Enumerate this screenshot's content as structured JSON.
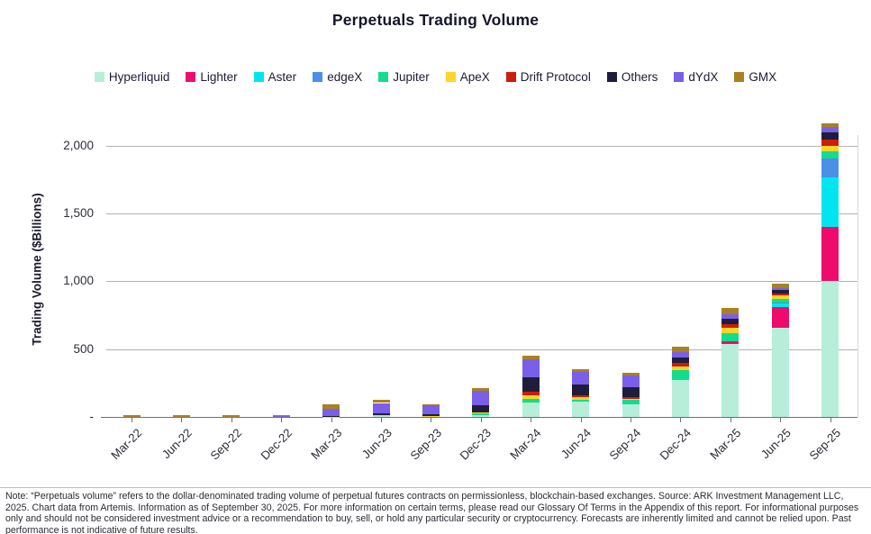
{
  "title": "Perpetuals Trading Volume",
  "chart_data": {
    "type": "bar",
    "stacked": true,
    "title": "Perpetuals Trading Volume",
    "xlabel": "",
    "ylabel": "Trading Volume ($Billions)",
    "legend_position": "top",
    "grid": "horizontal",
    "ylim": [
      0,
      2200
    ],
    "y_ticks": [
      {
        "value": 0,
        "label": "-"
      },
      {
        "value": 500,
        "label": "500"
      },
      {
        "value": 1000,
        "label": "1,000"
      },
      {
        "value": 1500,
        "label": "1,500"
      },
      {
        "value": 2000,
        "label": "2,000"
      }
    ],
    "categories": [
      "Mar-22",
      "Jun-22",
      "Sep-22",
      "Dec-22",
      "Mar-23",
      "Jun-23",
      "Sep-23",
      "Dec-23",
      "Mar-24",
      "Jun-24",
      "Sep-24",
      "Dec-24",
      "Mar-25",
      "Jun-25",
      "Sep-25"
    ],
    "series": [
      {
        "name": "Hyperliquid",
        "color": "#b7eeda",
        "values": [
          0,
          0,
          0,
          0,
          0,
          5,
          0,
          15,
          105,
          110,
          95,
          270,
          535,
          655,
          1000
        ]
      },
      {
        "name": "Lighter",
        "color": "#ee0b6c",
        "values": [
          0,
          0,
          0,
          0,
          0,
          0,
          0,
          0,
          0,
          0,
          0,
          0,
          20,
          155,
          400
        ]
      },
      {
        "name": "Aster",
        "color": "#00e5f0",
        "values": [
          0,
          0,
          0,
          0,
          0,
          0,
          0,
          0,
          0,
          0,
          0,
          0,
          0,
          30,
          365
        ]
      },
      {
        "name": "edgeX",
        "color": "#4a90e8",
        "values": [
          0,
          0,
          0,
          0,
          0,
          0,
          0,
          0,
          0,
          0,
          0,
          0,
          0,
          5,
          140
        ]
      },
      {
        "name": "Jupiter",
        "color": "#12dd8c",
        "values": [
          0,
          0,
          0,
          0,
          0,
          5,
          0,
          10,
          30,
          18,
          28,
          75,
          65,
          27,
          55
        ]
      },
      {
        "name": "ApeX",
        "color": "#ffd428",
        "values": [
          0,
          0,
          0,
          0,
          3,
          5,
          7,
          11,
          22,
          15,
          13,
          29,
          40,
          22,
          40
        ]
      },
      {
        "name": "Drift Protocol",
        "color": "#cc1c0e",
        "values": [
          0,
          0,
          0,
          0,
          0,
          0,
          0,
          0,
          29,
          18,
          13,
          26,
          22,
          15,
          45
        ]
      },
      {
        "name": "Others",
        "color": "#1e1e3c",
        "values": [
          0,
          0,
          0,
          0,
          5,
          13,
          13,
          53,
          104,
          77,
          73,
          40,
          40,
          30,
          55
        ]
      },
      {
        "name": "dYdX",
        "color": "#7a5fe8",
        "values": [
          3,
          3,
          3,
          4,
          53,
          75,
          66,
          102,
          133,
          95,
          82,
          38,
          37,
          10,
          35
        ]
      },
      {
        "name": "GMX",
        "color": "#a8821e",
        "values": [
          10,
          10,
          12,
          12,
          29,
          22,
          8,
          20,
          29,
          20,
          22,
          38,
          44,
          33,
          30
        ]
      }
    ]
  },
  "footnote": "Note: “Perpetuals volume” refers to the dollar-denominated trading volume of perpetual futures contracts on permissionless, blockchain-based exchanges. Source: ARK Investment Management LLC, 2025. Chart data from Artemis. Information as of September 30, 2025. For more information on certain terms, please read our Glossary Of Terms in the Appendix of this report. For informational purposes only and should not be considered investment advice or a recommendation to buy, sell, or hold any particular security or cryptocurrency. Forecasts are inherently limited and cannot be relied upon. Past performance is not indicative of future results."
}
